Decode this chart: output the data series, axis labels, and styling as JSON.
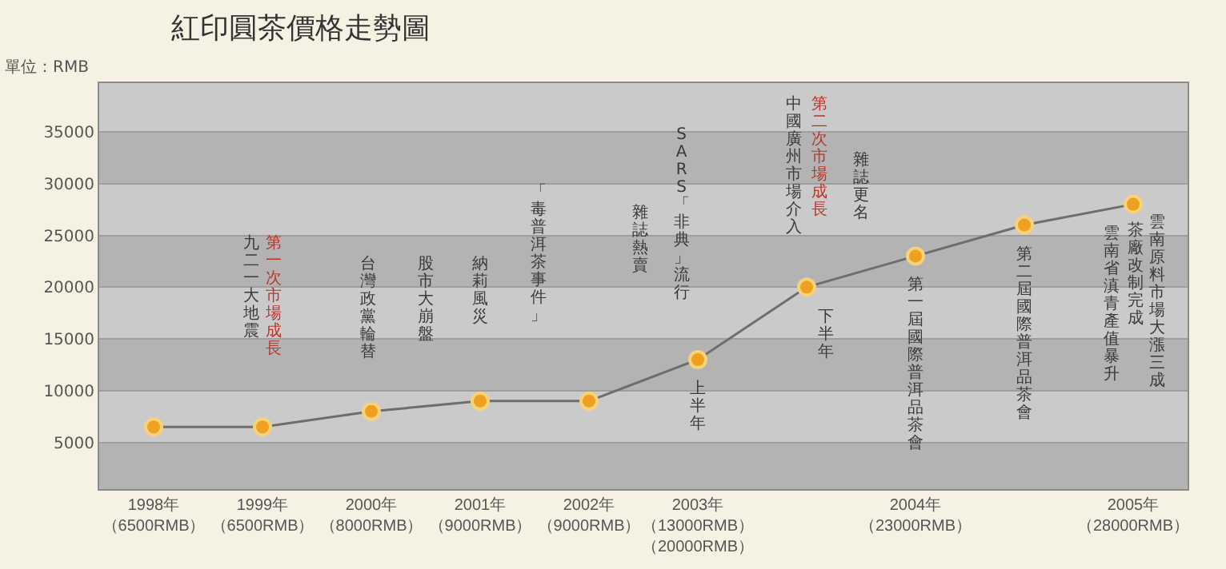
{
  "chart_data": {
    "type": "line",
    "title": "紅印圓茶價格走勢圖",
    "ylabel": "單位：RMB",
    "categories": [
      "1998年（6500RMB）",
      "1999年（6500RMB）",
      "2000年（8000RMB）",
      "2001年（9000RMB）",
      "2002年（9000RMB）",
      "2003年（13000RMB）（20000RMB）",
      null,
      "2004年（23000RMB）",
      null,
      "2005年（28000RMB）"
    ],
    "series": [
      {
        "color": "#f0a020",
        "values": [
          6500,
          6500,
          8000,
          9000,
          9000,
          13000,
          20000,
          23000,
          26000,
          28000
        ]
      }
    ],
    "ylim": [
      500,
      39700
    ],
    "yticks": [
      5000,
      10000,
      15000,
      20000,
      25000,
      30000,
      35000
    ],
    "grid": "y",
    "marker": "circle",
    "line_style": "solid",
    "annotations": [
      "第一次市場成長",
      "九二一大地震",
      "台灣政黨輪替",
      "股市大崩盤",
      "納莉風災",
      "「毒普洱茶事件」",
      "雜誌熱賣",
      "SARS「非典」流行",
      "上半年",
      "第二次市場成長",
      "中國廣州市場介入",
      "下半年",
      "雜誌更名",
      "第一屆國際普洱品茶會",
      "第二屆國際普洱品茶會",
      "雲南原料市場大漲三成",
      "茶廠改制完成",
      "雲南省滇青產值暴升"
    ]
  }
}
